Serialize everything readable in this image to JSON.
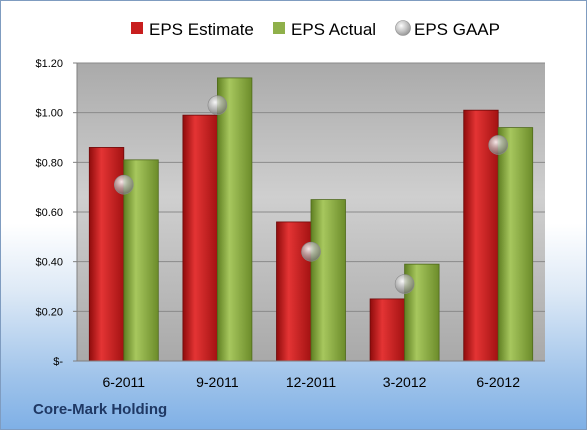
{
  "company": "Core-Mark Holding",
  "chart_data": {
    "type": "bar",
    "categories": [
      "6-2011",
      "9-2011",
      "12-2011",
      "3-2012",
      "6-2012"
    ],
    "series": [
      {
        "name": "EPS Estimate",
        "kind": "bar",
        "color": "#c81e1e",
        "values": [
          0.86,
          0.99,
          0.56,
          0.25,
          1.01
        ]
      },
      {
        "name": "EPS Actual",
        "kind": "bar",
        "color": "#8fb04a",
        "values": [
          0.81,
          1.14,
          0.65,
          0.39,
          0.94
        ]
      },
      {
        "name": "EPS GAAP",
        "kind": "marker",
        "color": "#a8a8a8",
        "values": [
          0.71,
          1.03,
          0.44,
          0.31,
          0.87
        ]
      }
    ],
    "ylim": [
      0,
      1.2
    ],
    "yticks": [
      {
        "value": 0,
        "label": "$-"
      },
      {
        "value": 0.2,
        "label": "$0.20"
      },
      {
        "value": 0.4,
        "label": "$0.40"
      },
      {
        "value": 0.6,
        "label": "$0.60"
      },
      {
        "value": 0.8,
        "label": "$0.80"
      },
      {
        "value": 1.0,
        "label": "$1.00"
      },
      {
        "value": 1.2,
        "label": "$1.20"
      }
    ],
    "grid": true,
    "legend_position": "top"
  }
}
